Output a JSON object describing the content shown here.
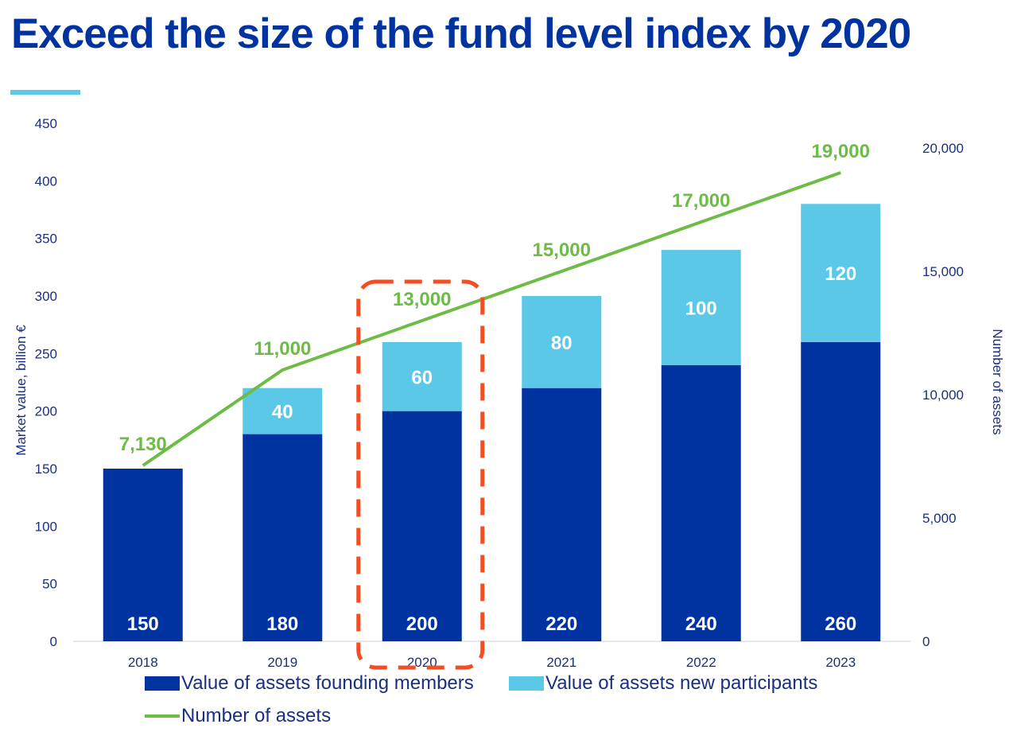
{
  "title": "Exceed the size of the fund level index by 2020",
  "colors": {
    "founding": "#0033a0",
    "new": "#5bc8e8",
    "line": "#6cbc45",
    "highlight": "#f04e23",
    "title": "#0033a0",
    "accent_rule": "#5bc8e8"
  },
  "chart_data": {
    "type": "bar",
    "stacked": true,
    "categories": [
      "2018",
      "2019",
      "2020",
      "2021",
      "2022",
      "2023"
    ],
    "series": [
      {
        "name": "Value of assets founding members",
        "type": "bar",
        "axis": "left",
        "values": [
          150,
          180,
          200,
          220,
          240,
          260
        ],
        "labels": [
          "150",
          "180",
          "200",
          "220",
          "240",
          "260"
        ]
      },
      {
        "name": "Value of assets new participants",
        "type": "bar",
        "axis": "left",
        "values": [
          0,
          40,
          60,
          80,
          100,
          120
        ],
        "labels": [
          "",
          "40",
          "60",
          "80",
          "100",
          "120"
        ]
      },
      {
        "name": "Number of assets",
        "type": "line",
        "axis": "right",
        "values": [
          7130,
          11000,
          13000,
          15000,
          17000,
          19000
        ],
        "labels": [
          "7,130",
          "11,000",
          "13,000",
          "15,000",
          "17,000",
          "19,000"
        ]
      }
    ],
    "ylabel": "Market value, billion €",
    "y2label": "Number of assets",
    "ylim": [
      0,
      450
    ],
    "y2lim": [
      0,
      21000
    ],
    "yticks": [
      "0",
      "50",
      "100",
      "150",
      "200",
      "250",
      "300",
      "350",
      "400",
      "450"
    ],
    "y2ticks": [
      "0",
      "5,000",
      "10,000",
      "15,000",
      "20,000"
    ],
    "highlight_category": "2020",
    "grid": false,
    "legend_position": "bottom"
  }
}
